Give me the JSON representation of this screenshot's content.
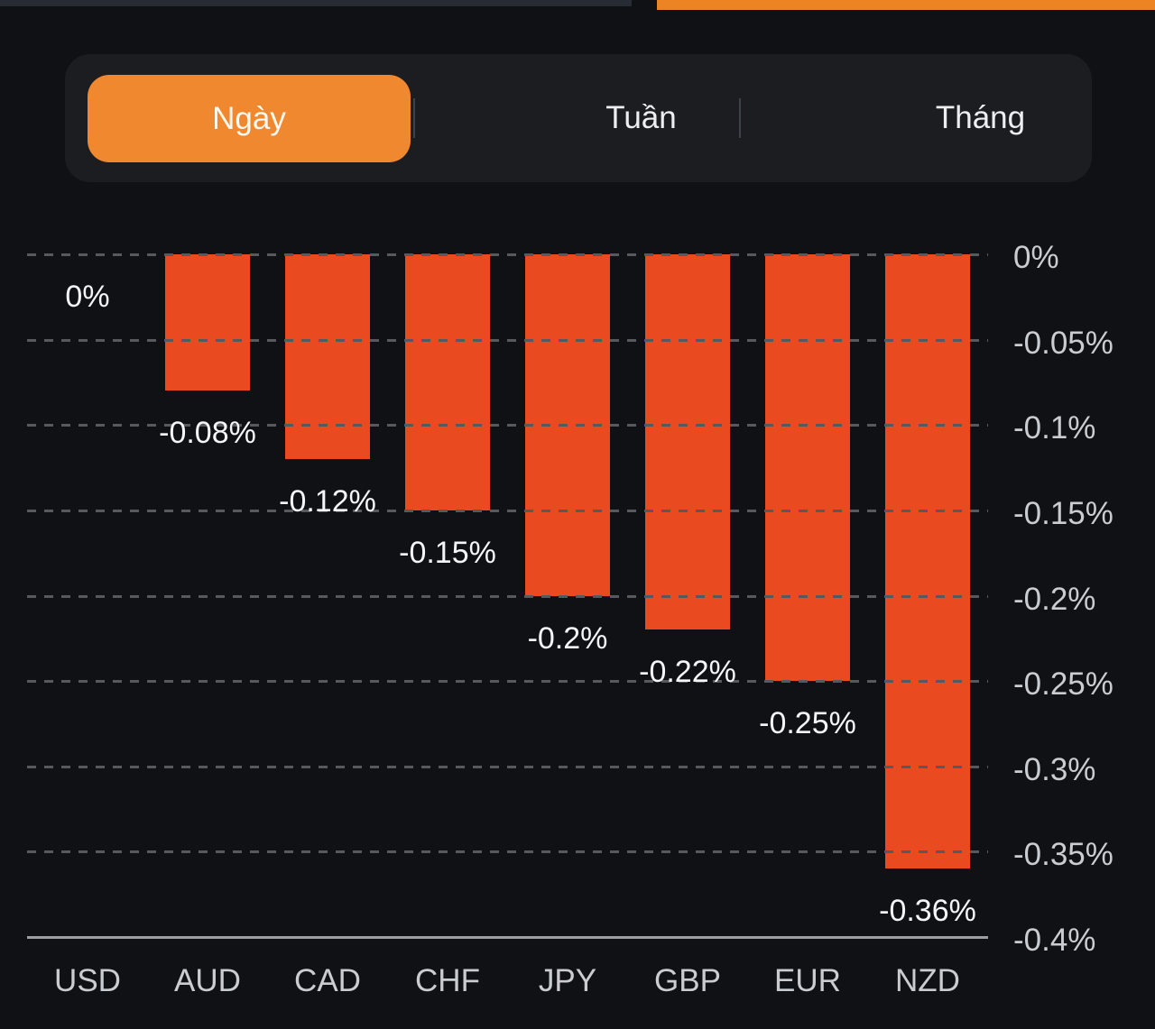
{
  "top_bar": {
    "accent_color": "#ED8424",
    "track_color": "#272c34"
  },
  "tabs": {
    "items": [
      {
        "label": "Ngày",
        "active": true
      },
      {
        "label": "Tuần",
        "active": false
      },
      {
        "label": "Tháng",
        "active": false
      }
    ],
    "active_color": "#F0882F"
  },
  "chart_data": {
    "type": "bar",
    "title": "",
    "categories": [
      "USD",
      "AUD",
      "CAD",
      "CHF",
      "JPY",
      "GBP",
      "EUR",
      "NZD"
    ],
    "values": [
      0,
      -0.08,
      -0.12,
      -0.15,
      -0.2,
      -0.22,
      -0.25,
      -0.36
    ],
    "value_labels": [
      "0%",
      "-0.08%",
      "-0.12%",
      "-0.15%",
      "-0.2%",
      "-0.22%",
      "-0.25%",
      "-0.36%"
    ],
    "unit": "%",
    "ylim": [
      -0.4,
      0
    ],
    "y_ticks": [
      {
        "value": 0,
        "label": "0%"
      },
      {
        "value": -0.05,
        "label": "-0.05%"
      },
      {
        "value": -0.1,
        "label": "-0.1%"
      },
      {
        "value": -0.15,
        "label": "-0.15%"
      },
      {
        "value": -0.2,
        "label": "-0.2%"
      },
      {
        "value": -0.25,
        "label": "-0.25%"
      },
      {
        "value": -0.3,
        "label": "-0.3%"
      },
      {
        "value": -0.35,
        "label": "-0.35%"
      },
      {
        "value": -0.4,
        "label": "-0.4%"
      }
    ],
    "grid": "horizontal-dashed",
    "legend": "none",
    "axis_side": "right",
    "bar_color": "#E94A1F"
  }
}
